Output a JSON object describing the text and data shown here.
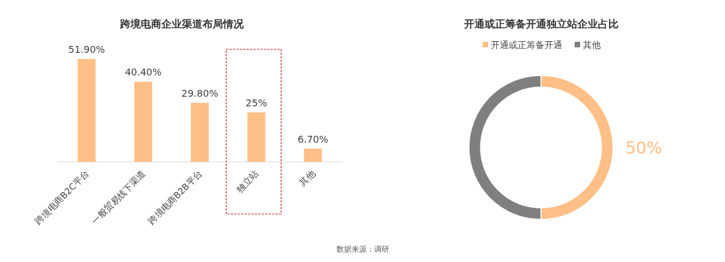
{
  "chart_data": [
    {
      "type": "bar",
      "title": "跨境电商企业渠道布局情况",
      "categories": [
        "跨境电商B2C平台",
        "一般贸易线下渠道",
        "跨境电商B2B平台",
        "独立站",
        "其他"
      ],
      "values": [
        51.9,
        40.4,
        29.8,
        25,
        6.7
      ],
      "value_labels": [
        "51.90%",
        "40.40%",
        "29.80%",
        "25%",
        "6.70%"
      ],
      "color": "#ffbf86",
      "annotations": [
        "数据来源：调研"
      ]
    },
    {
      "type": "donut",
      "title": "开通或正筹备开通独立站企业占比",
      "categories": [
        "开通或正筹备开通",
        "其他"
      ],
      "values": [
        50,
        50
      ],
      "colors": [
        "#ffbf86",
        "#7f7f7f"
      ],
      "value_labels": [
        "50%",
        null
      ],
      "legend": "top"
    }
  ]
}
